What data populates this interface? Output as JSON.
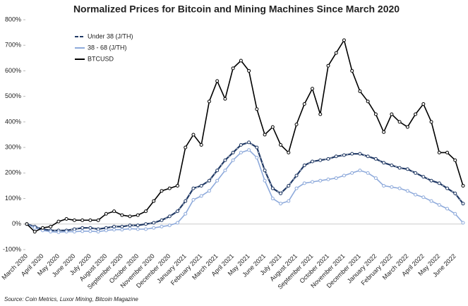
{
  "chart_data": {
    "type": "line",
    "title": "Normalized Prices for Bitcoin and Mining Machines Since March 2020",
    "source": "Source: Coin Metrics, Luxor Mining, Bitcoin Magazine",
    "categories": [
      "March 2020",
      null,
      "April 2020",
      null,
      "May 2020",
      null,
      "June 2020",
      null,
      "July 2020",
      null,
      "August 2020",
      null,
      "September 2020",
      null,
      "October 2020",
      null,
      "November 2020",
      null,
      "December 2020",
      null,
      "January 2021",
      null,
      "February 2021",
      null,
      "March 2021",
      null,
      "April 2021",
      null,
      "May 2021",
      null,
      "June 2021",
      null,
      "July 2021",
      null,
      "August 2021",
      null,
      "September 2021",
      null,
      "October 2021",
      null,
      "November 2021",
      null,
      "December 2021",
      null,
      "January 2022",
      null,
      "February 2022",
      null,
      "March 2022",
      null,
      "April 2022",
      null,
      "May 2022",
      null,
      "June 2022",
      null
    ],
    "series": [
      {
        "name": "Under 38 (J/TH)",
        "color": "#1f3864",
        "dashed": true,
        "values": [
          0,
          -10,
          -20,
          -25,
          -25,
          -25,
          -20,
          -15,
          -15,
          -20,
          -15,
          -10,
          -10,
          -5,
          -5,
          0,
          5,
          15,
          30,
          50,
          90,
          140,
          150,
          170,
          210,
          250,
          280,
          310,
          320,
          300,
          210,
          140,
          120,
          150,
          190,
          230,
          245,
          250,
          255,
          265,
          270,
          275,
          275,
          265,
          255,
          240,
          230,
          220,
          215,
          200,
          185,
          170,
          160,
          140,
          120,
          80
        ]
      },
      {
        "name": "38 - 68 (J/TH)",
        "color": "#8eaadb",
        "dashed": false,
        "values": [
          0,
          -15,
          -25,
          -30,
          -32,
          -30,
          -30,
          -28,
          -28,
          -30,
          -25,
          -22,
          -22,
          -18,
          -20,
          -20,
          -15,
          -10,
          -5,
          5,
          40,
          95,
          110,
          130,
          170,
          210,
          250,
          280,
          290,
          260,
          170,
          100,
          80,
          90,
          140,
          160,
          165,
          170,
          175,
          180,
          190,
          200,
          210,
          200,
          180,
          150,
          145,
          140,
          130,
          115,
          105,
          90,
          75,
          60,
          40,
          5
        ]
      },
      {
        "name": "BTCUSD",
        "color": "#000000",
        "dashed": false,
        "values": [
          0,
          -30,
          -15,
          -10,
          10,
          20,
          15,
          15,
          15,
          15,
          40,
          50,
          35,
          30,
          35,
          50,
          90,
          130,
          140,
          150,
          300,
          350,
          310,
          480,
          560,
          490,
          610,
          640,
          600,
          450,
          350,
          380,
          310,
          280,
          390,
          470,
          530,
          430,
          620,
          670,
          720,
          600,
          520,
          480,
          430,
          360,
          430,
          400,
          380,
          430,
          470,
          400,
          280,
          280,
          250,
          150
        ]
      }
    ],
    "ylim": [
      -100,
      800
    ],
    "yticks": [
      {
        "value": -100,
        "label": "-100%"
      },
      {
        "value": 0,
        "label": "0%"
      },
      {
        "value": 100,
        "label": "100%"
      },
      {
        "value": 200,
        "label": "200%"
      },
      {
        "value": 300,
        "label": "300%"
      },
      {
        "value": 400,
        "label": "400%"
      },
      {
        "value": 500,
        "label": "500%"
      },
      {
        "value": 600,
        "label": "600%"
      },
      {
        "value": 700,
        "label": "700%"
      },
      {
        "value": 800,
        "label": "800%"
      }
    ],
    "grid": false,
    "legend": "upper left"
  }
}
